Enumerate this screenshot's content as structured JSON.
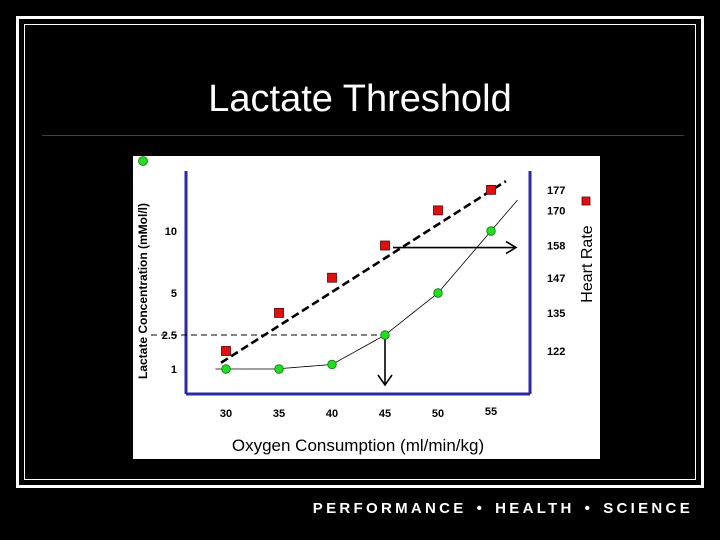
{
  "slide": {
    "title": "Lactate Threshold",
    "footer": {
      "word1": "PERFORMANCE",
      "word2": "HEALTH",
      "word3": "SCIENCE",
      "separator": "•"
    }
  },
  "colors": {
    "background": "#000000",
    "rule": "#b01010",
    "axis": "#2a2aa8",
    "heart_rate_marker": "#dd1111",
    "lactate_marker": "#22dd22"
  },
  "chart_data": {
    "type": "scatter",
    "x": [
      30,
      35,
      40,
      45,
      50,
      55
    ],
    "xlabel": "Oxygen Consumption (ml/min/kg)",
    "x_tick_labels": [
      "30",
      "35",
      "40",
      "45",
      "50",
      "55"
    ],
    "ylabel_left": "Lactate Concentration (mMol/l)",
    "y_left_tick_labels": [
      "10",
      "5",
      "2.5",
      "1"
    ],
    "ylabel_right": "Heart Rate",
    "y_right_tick_labels": [
      "177",
      "170",
      "158",
      "147",
      "135",
      "122"
    ],
    "series": [
      {
        "name": "Heart Rate",
        "marker": "square",
        "x": [
          30,
          35,
          40,
          45,
          50,
          55
        ],
        "values": [
          122,
          135,
          147,
          158,
          170,
          177
        ],
        "trend": "dashed linear"
      },
      {
        "name": "Lactate Concentration",
        "marker": "circle",
        "x": [
          30,
          35,
          40,
          45,
          50,
          55
        ],
        "values": [
          1,
          1,
          1.2,
          2.5,
          5,
          10
        ],
        "trend": "solid curve"
      }
    ],
    "annotations": [
      {
        "type": "dashed-guide",
        "at": "lactate threshold 2.5"
      },
      {
        "type": "arrow",
        "direction": "down",
        "from": "45"
      },
      {
        "type": "arrow",
        "direction": "right",
        "from": "158"
      }
    ]
  }
}
